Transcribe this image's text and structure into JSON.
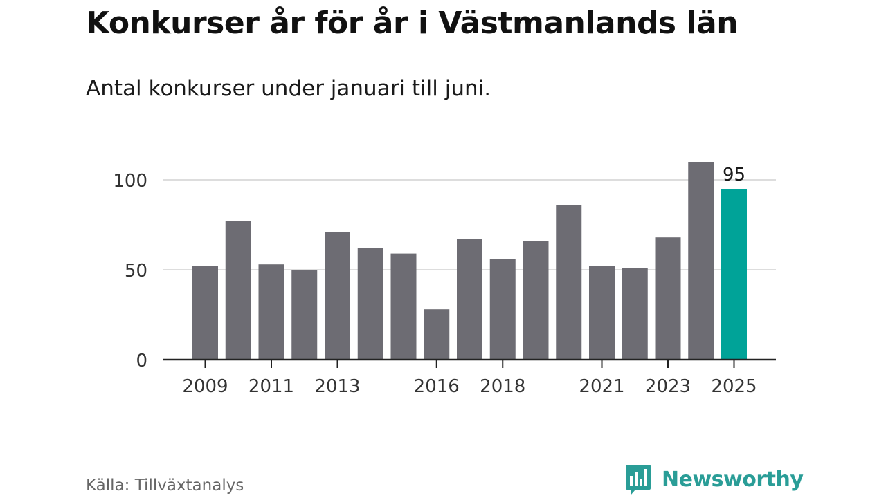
{
  "header": {
    "title": "Konkurser år för år i Västmanlands län",
    "subtitle": "Antal konkurser under januari till juni."
  },
  "footer": {
    "source": "Källa: Tillväxtanalys",
    "brand": "Newsworthy",
    "brand_icon": "newsworthy-logo-icon"
  },
  "colors": {
    "bar_default": "#6d6c73",
    "bar_highlight": "#00a398",
    "grid": "#dddddd",
    "axis": "#222222",
    "brand": "#2a9d97"
  },
  "chart_data": {
    "type": "bar",
    "title": "Konkurser år för år i Västmanlands län",
    "subtitle": "Antal konkurser under januari till juni.",
    "categories": [
      "2009",
      "2010",
      "2011",
      "2012",
      "2013",
      "2014",
      "2015",
      "2016",
      "2017",
      "2018",
      "2019",
      "2020",
      "2021",
      "2022",
      "2023",
      "2024",
      "2025"
    ],
    "values": [
      52,
      77,
      53,
      50,
      71,
      62,
      59,
      28,
      67,
      56,
      66,
      86,
      52,
      51,
      68,
      110,
      95
    ],
    "highlight_index": 16,
    "data_labels": [
      {
        "index": 16,
        "text": "95"
      }
    ],
    "x_tick_labels": [
      "2009",
      "2011",
      "2013",
      "2016",
      "2018",
      "2021",
      "2023",
      "2025"
    ],
    "y_ticks": [
      0,
      50,
      100
    ],
    "ylim": [
      0,
      110
    ],
    "grid": true,
    "legend": "none"
  }
}
